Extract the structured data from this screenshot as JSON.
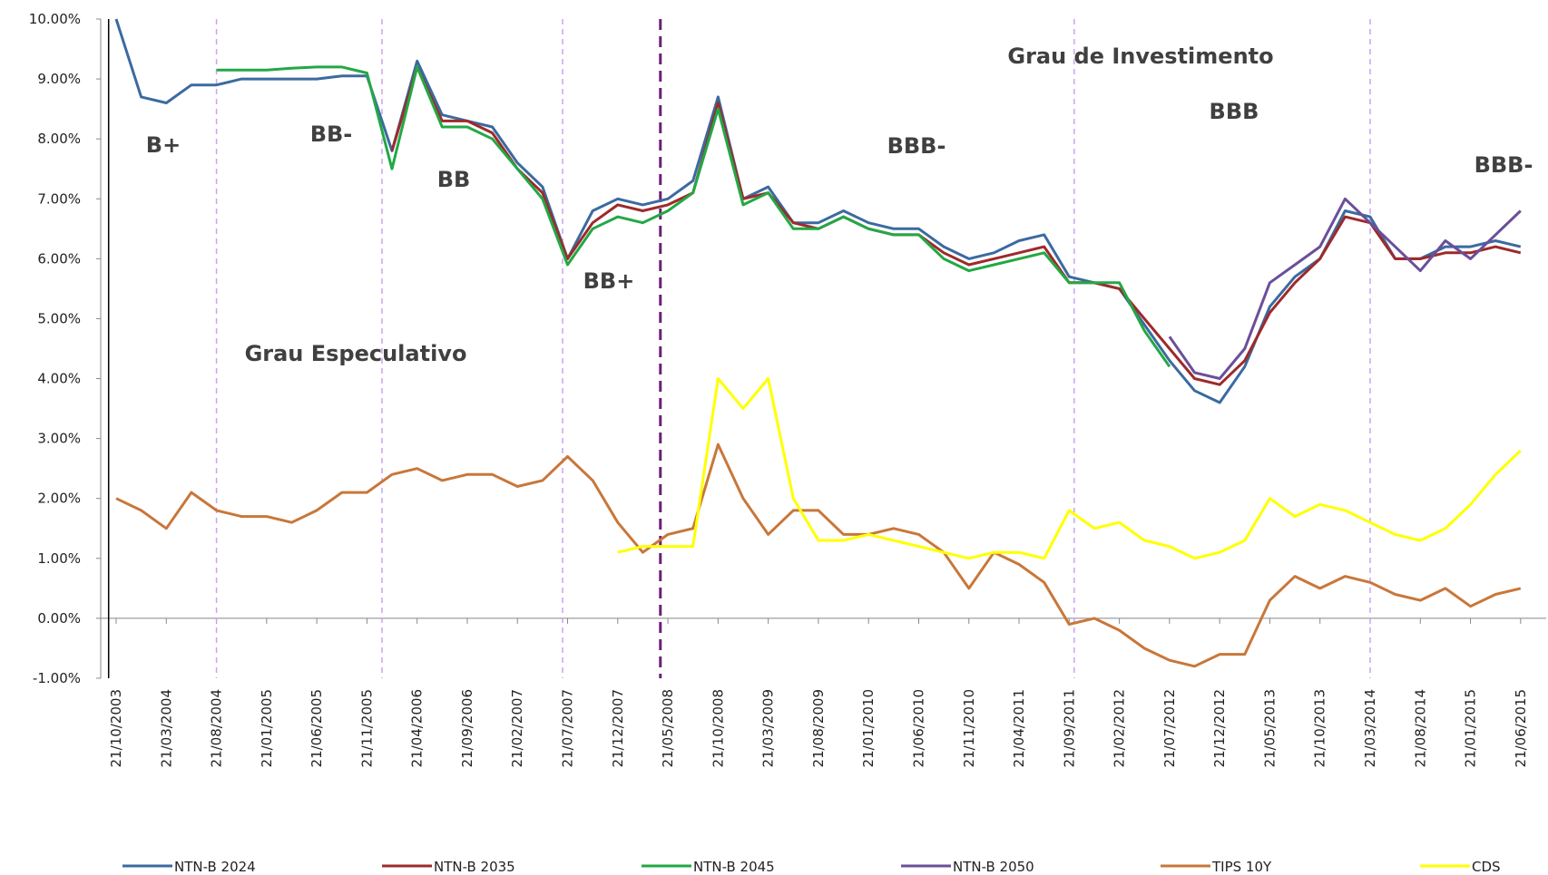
{
  "chart_data": {
    "type": "line",
    "categories": [
      "21/10/2003",
      null,
      "21/03/2004",
      null,
      "21/08/2004",
      null,
      "21/01/2005",
      null,
      "21/06/2005",
      null,
      "21/11/2005",
      null,
      "21/04/2006",
      null,
      "21/09/2006",
      null,
      "21/02/2007",
      null,
      "21/07/2007",
      null,
      "21/12/2007",
      null,
      "21/05/2008",
      null,
      "21/10/2008",
      null,
      "21/03/2009",
      null,
      "21/08/2009",
      null,
      "21/01/2010",
      null,
      "21/06/2010",
      null,
      "21/11/2010",
      null,
      "21/04/2011",
      null,
      "21/09/2011",
      null,
      "21/02/2012",
      null,
      "21/07/2012",
      null,
      "21/12/2012",
      null,
      "21/05/2013",
      null,
      "21/10/2013",
      null,
      "21/03/2014",
      null,
      "21/08/2014",
      null,
      "21/01/2015",
      null,
      "21/06/2015"
    ],
    "series": [
      {
        "name": "NTN-B 2024",
        "color": "#3b6aa0",
        "values": [
          10.0,
          8.7,
          8.6,
          8.9,
          8.9,
          9.0,
          9.0,
          9.0,
          9.0,
          9.05,
          9.05,
          7.8,
          9.3,
          8.4,
          8.3,
          8.2,
          7.6,
          7.2,
          6.0,
          6.8,
          7.0,
          6.9,
          7.0,
          7.3,
          8.7,
          7.0,
          7.2,
          6.6,
          6.6,
          6.8,
          6.6,
          6.5,
          6.5,
          6.2,
          6.0,
          6.1,
          6.3,
          6.4,
          5.7,
          5.6,
          5.5,
          4.9,
          4.3,
          3.8,
          3.6,
          4.2,
          5.2,
          5.7,
          6.0,
          6.8,
          6.7,
          6.0,
          6.0,
          6.2,
          6.2,
          6.3,
          6.2
        ]
      },
      {
        "name": "NTN-B 2035",
        "color": "#9e2a2b",
        "values": [
          null,
          null,
          null,
          null,
          null,
          null,
          null,
          null,
          null,
          null,
          null,
          7.8,
          9.2,
          8.3,
          8.3,
          8.1,
          7.5,
          7.1,
          6.0,
          6.6,
          6.9,
          6.8,
          6.9,
          7.1,
          8.6,
          7.0,
          7.1,
          6.6,
          6.5,
          6.7,
          6.5,
          6.4,
          6.4,
          6.1,
          5.9,
          6.0,
          6.1,
          6.2,
          5.6,
          5.6,
          5.5,
          5.0,
          4.5,
          4.0,
          3.9,
          4.3,
          5.1,
          5.6,
          6.0,
          6.7,
          6.6,
          6.0,
          6.0,
          6.1,
          6.1,
          6.2,
          6.1
        ]
      },
      {
        "name": "NTN-B 2045",
        "color": "#22a845",
        "values": [
          null,
          null,
          null,
          null,
          9.15,
          9.15,
          9.15,
          9.18,
          9.2,
          9.2,
          9.1,
          7.5,
          9.2,
          8.2,
          8.2,
          8.0,
          7.5,
          7.0,
          5.9,
          6.5,
          6.7,
          6.6,
          6.8,
          7.1,
          8.5,
          6.9,
          7.1,
          6.5,
          6.5,
          6.7,
          6.5,
          6.4,
          6.4,
          6.0,
          5.8,
          5.9,
          6.0,
          6.1,
          5.6,
          5.6,
          5.6,
          4.8,
          4.2,
          null,
          null,
          null,
          null,
          null,
          null,
          null,
          null,
          null,
          null,
          null,
          null,
          null,
          null
        ]
      },
      {
        "name": "NTN-B 2050",
        "color": "#6a4f9a",
        "values": [
          null,
          null,
          null,
          null,
          null,
          null,
          null,
          null,
          null,
          null,
          null,
          null,
          null,
          null,
          null,
          null,
          null,
          null,
          null,
          null,
          null,
          null,
          null,
          null,
          null,
          null,
          null,
          null,
          null,
          null,
          null,
          null,
          null,
          null,
          null,
          null,
          null,
          null,
          null,
          null,
          null,
          null,
          4.7,
          4.1,
          4.0,
          4.5,
          5.6,
          5.9,
          6.2,
          7.0,
          6.6,
          6.2,
          5.8,
          6.3,
          6.0,
          6.4,
          6.8
        ]
      },
      {
        "name": "TIPS 10Y",
        "color": "#c8773a",
        "values": [
          2.0,
          1.8,
          1.5,
          2.1,
          1.8,
          1.7,
          1.7,
          1.6,
          1.8,
          2.1,
          2.1,
          2.4,
          2.5,
          2.3,
          2.4,
          2.4,
          2.2,
          2.3,
          2.7,
          2.3,
          1.6,
          1.1,
          1.4,
          1.5,
          2.9,
          2.0,
          1.4,
          1.8,
          1.8,
          1.4,
          1.4,
          1.5,
          1.4,
          1.1,
          0.5,
          1.1,
          0.9,
          0.6,
          -0.1,
          0.0,
          -0.2,
          -0.5,
          -0.7,
          -0.8,
          -0.6,
          -0.6,
          0.3,
          0.7,
          0.5,
          0.7,
          0.6,
          0.4,
          0.3,
          0.5,
          0.2,
          0.4,
          0.5
        ]
      },
      {
        "name": "CDS",
        "color": "#ffff00",
        "values": [
          null,
          null,
          null,
          null,
          null,
          null,
          null,
          null,
          null,
          null,
          null,
          null,
          null,
          null,
          null,
          null,
          null,
          null,
          null,
          null,
          1.1,
          1.2,
          1.2,
          1.2,
          4.0,
          3.5,
          4.0,
          2.0,
          1.3,
          1.3,
          1.4,
          1.3,
          1.2,
          1.1,
          1.0,
          1.1,
          1.1,
          1.0,
          1.8,
          1.5,
          1.6,
          1.3,
          1.2,
          1.0,
          1.1,
          1.3,
          2.0,
          1.7,
          1.9,
          1.8,
          1.6,
          1.4,
          1.3,
          1.5,
          1.9,
          2.4,
          2.8
        ]
      }
    ],
    "ylim": [
      -1,
      10
    ],
    "yticks": [
      {
        "value": -1,
        "label": "-1.00%"
      },
      {
        "value": 0,
        "label": "0.00%"
      },
      {
        "value": 1,
        "label": "1.00%"
      },
      {
        "value": 2,
        "label": "2.00%"
      },
      {
        "value": 3,
        "label": "3.00%"
      },
      {
        "value": 4,
        "label": "4.00%"
      },
      {
        "value": 5,
        "label": "5.00%"
      },
      {
        "value": 6,
        "label": "6.00%"
      },
      {
        "value": 7,
        "label": "7.00%"
      },
      {
        "value": 8,
        "label": "8.00%"
      },
      {
        "value": 9,
        "label": "9.00%"
      },
      {
        "value": 10,
        "label": "10.00%"
      }
    ],
    "annotations": [
      "B+",
      "BB-",
      "BB",
      "BB+",
      "BBB-",
      "BBB",
      "BBB-",
      "Grau Especulativo",
      "Grau de Investimento"
    ],
    "legend": "bottom"
  }
}
